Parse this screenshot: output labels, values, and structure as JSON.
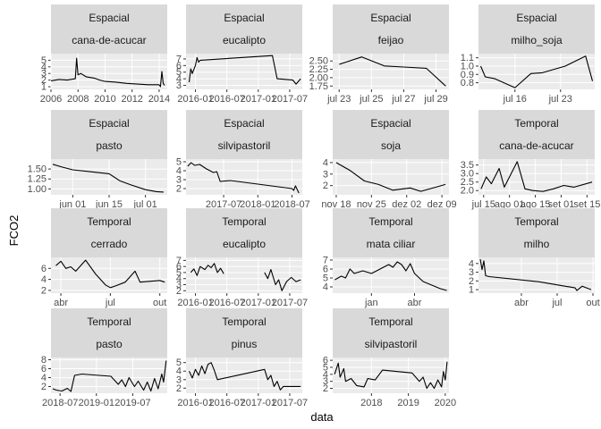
{
  "chart_data": {
    "type": "line",
    "xlabel": "data",
    "ylabel": "FCO2",
    "grid": true,
    "facet_strip_color": "#d9d9d9",
    "panel_color": "#ebebeb",
    "line_color": "#000000",
    "panels": [
      {
        "strip1": "Espacial",
        "strip2": "cana-de-acucar",
        "yticks": [
          "1",
          "2",
          "3",
          "4",
          "5"
        ],
        "ylim": [
          0.6,
          6.0
        ],
        "xticks": [
          "2006",
          "2008",
          "2010",
          "2012",
          "2014"
        ],
        "xlim": [
          0,
          4.3
        ],
        "line": [
          [
            0.0,
            1.9
          ],
          [
            0.3,
            2.1
          ],
          [
            0.6,
            2.0
          ],
          [
            0.9,
            2.2
          ],
          [
            0.95,
            5.3
          ],
          [
            1.0,
            2.8
          ],
          [
            1.1,
            3.0
          ],
          [
            1.3,
            2.5
          ],
          [
            1.6,
            2.3
          ],
          [
            1.8,
            2.0
          ],
          [
            2.0,
            1.8
          ],
          [
            2.4,
            1.7
          ],
          [
            2.8,
            1.5
          ],
          [
            3.2,
            1.4
          ],
          [
            3.6,
            1.3
          ],
          [
            4.0,
            1.3
          ],
          [
            4.05,
            1.0
          ],
          [
            4.1,
            3.3
          ],
          [
            4.15,
            1.5
          ],
          [
            4.2,
            1.2
          ]
        ]
      },
      {
        "strip1": "Espacial",
        "strip2": "eucalipto",
        "yticks": [
          "3",
          "4",
          "5",
          "6",
          "7"
        ],
        "ylim": [
          2.4,
          7.8
        ],
        "xticks": [
          "2016-01",
          "2016-07",
          "2017-01",
          "2017-07"
        ],
        "xlim": [
          -0.3,
          3.4
        ],
        "line": [
          [
            -0.2,
            3.5
          ],
          [
            -0.15,
            5.5
          ],
          [
            -0.1,
            4.8
          ],
          [
            0.0,
            6.0
          ],
          [
            0.05,
            7.2
          ],
          [
            0.1,
            6.5
          ],
          [
            0.15,
            6.8
          ],
          [
            2.45,
            7.5
          ],
          [
            2.6,
            4.0
          ],
          [
            3.1,
            3.8
          ],
          [
            3.2,
            3.2
          ],
          [
            3.35,
            4.0
          ]
        ]
      },
      {
        "strip1": "Espacial",
        "strip2": "feijao",
        "yticks": [
          "1.75",
          "2.00",
          "2.25",
          "2.50"
        ],
        "ylim": [
          1.65,
          2.72
        ],
        "xticks": [
          "jul 23",
          "jul 25",
          "jul 27",
          "jul 29"
        ],
        "xlim": [
          -0.2,
          3.4
        ],
        "line": [
          [
            0.0,
            2.4
          ],
          [
            0.7,
            2.62
          ],
          [
            1.4,
            2.35
          ],
          [
            2.0,
            2.32
          ],
          [
            2.7,
            2.28
          ],
          [
            3.3,
            1.75
          ]
        ]
      },
      {
        "strip1": "Espacial",
        "strip2": "milho_soja",
        "yticks": [
          "0.8",
          "0.9",
          "1.0",
          "1.1"
        ],
        "ylim": [
          0.72,
          1.15
        ],
        "xticks": [
          "jul 16",
          "jul 23"
        ],
        "xlim": [
          -0.8,
          1.75
        ],
        "line": [
          [
            -0.75,
            1.0
          ],
          [
            -0.65,
            0.87
          ],
          [
            -0.45,
            0.85
          ],
          [
            0.0,
            0.74
          ],
          [
            0.35,
            0.91
          ],
          [
            0.6,
            0.92
          ],
          [
            1.1,
            1.0
          ],
          [
            1.55,
            1.12
          ],
          [
            1.7,
            0.82
          ]
        ]
      },
      {
        "strip1": "Espacial",
        "strip2": "pasto",
        "yticks": [
          "1.00",
          "1.25",
          "1.50"
        ],
        "ylim": [
          0.85,
          1.75
        ],
        "xticks": [
          "jun 01",
          "jun 15",
          "jul 01"
        ],
        "xlim": [
          -0.6,
          2.6
        ],
        "line": [
          [
            -0.55,
            1.62
          ],
          [
            -0.3,
            1.55
          ],
          [
            0.0,
            1.48
          ],
          [
            0.5,
            1.43
          ],
          [
            1.0,
            1.38
          ],
          [
            1.3,
            1.2
          ],
          [
            1.6,
            1.1
          ],
          [
            2.0,
            0.98
          ],
          [
            2.3,
            0.93
          ],
          [
            2.5,
            0.92
          ]
        ]
      },
      {
        "strip1": "Espacial",
        "strip2": "silvipastoril",
        "yticks": [
          "2",
          "3",
          "4",
          "5"
        ],
        "ylim": [
          1.3,
          5.3
        ],
        "xticks": [
          "2017-07",
          "2018-01",
          "2018-07"
        ],
        "xlim": [
          -1.1,
          2.3
        ],
        "line": [
          [
            -1.05,
            4.5
          ],
          [
            -0.95,
            4.9
          ],
          [
            -0.85,
            4.6
          ],
          [
            -0.7,
            4.7
          ],
          [
            -0.5,
            4.2
          ],
          [
            -0.3,
            3.8
          ],
          [
            -0.2,
            3.9
          ],
          [
            -0.1,
            2.8
          ],
          [
            0.2,
            2.9
          ],
          [
            1.0,
            2.5
          ],
          [
            1.6,
            2.2
          ],
          [
            2.0,
            2.0
          ],
          [
            2.05,
            1.8
          ],
          [
            2.1,
            2.3
          ],
          [
            2.2,
            1.5
          ]
        ]
      },
      {
        "strip1": "Espacial",
        "strip2": "soja",
        "yticks": [
          "2",
          "3",
          "4"
        ],
        "ylim": [
          1.2,
          4.3
        ],
        "xticks": [
          "nov 18",
          "nov 25",
          "dez 02",
          "dez 09"
        ],
        "xlim": [
          -0.1,
          3.2
        ],
        "line": [
          [
            0.0,
            4.0
          ],
          [
            0.4,
            3.3
          ],
          [
            0.8,
            2.4
          ],
          [
            1.2,
            2.1
          ],
          [
            1.6,
            1.6
          ],
          [
            2.1,
            1.8
          ],
          [
            2.4,
            1.5
          ],
          [
            3.1,
            2.1
          ]
        ]
      },
      {
        "strip1": "Temporal",
        "strip2": "cana-de-acucar",
        "yticks": [
          "2.0",
          "2.5",
          "3.0",
          "3.5"
        ],
        "ylim": [
          1.75,
          3.85
        ],
        "xticks": [
          "jul 15",
          "ago 01",
          "ago 15",
          "set 01",
          "set 15"
        ],
        "xlim": [
          -0.2,
          4.3
        ],
        "line": [
          [
            -0.1,
            2.1
          ],
          [
            0.1,
            2.8
          ],
          [
            0.3,
            2.4
          ],
          [
            0.6,
            3.3
          ],
          [
            0.8,
            2.2
          ],
          [
            1.3,
            3.7
          ],
          [
            1.6,
            2.1
          ],
          [
            1.9,
            2.0
          ],
          [
            2.3,
            1.95
          ],
          [
            2.7,
            2.1
          ],
          [
            3.1,
            2.3
          ],
          [
            3.5,
            2.2
          ],
          [
            4.2,
            2.5
          ]
        ]
      },
      {
        "strip1": "Temporal",
        "strip2": "cerrado",
        "yticks": [
          "2",
          "4",
          "6"
        ],
        "ylim": [
          1.5,
          8.0
        ],
        "xticks": [
          "abr",
          "jul",
          "out"
        ],
        "xlim": [
          -0.2,
          2.15
        ],
        "line": [
          [
            -0.1,
            6.5
          ],
          [
            0.0,
            7.3
          ],
          [
            0.1,
            6.0
          ],
          [
            0.2,
            6.3
          ],
          [
            0.3,
            5.5
          ],
          [
            0.5,
            7.5
          ],
          [
            0.7,
            5.0
          ],
          [
            0.9,
            3.0
          ],
          [
            1.0,
            2.5
          ],
          [
            1.1,
            2.8
          ],
          [
            1.3,
            3.5
          ],
          [
            1.5,
            5.5
          ],
          [
            1.6,
            3.5
          ],
          [
            2.0,
            3.8
          ],
          [
            2.1,
            3.5
          ]
        ]
      },
      {
        "strip1": "Temporal",
        "strip2": "eucalipto",
        "yticks": [
          "2",
          "3",
          "4",
          "5",
          "6",
          "7"
        ],
        "ylim": [
          1.6,
          7.5
        ],
        "xticks": [
          "2016-01",
          "2016-07",
          "2017-01",
          "2017-07"
        ],
        "xlim": [
          -0.3,
          3.4
        ],
        "line": [
          [
            -0.15,
            5.0
          ],
          [
            -0.05,
            5.6
          ],
          [
            0.05,
            4.5
          ],
          [
            0.15,
            6.0
          ],
          [
            0.3,
            5.5
          ],
          [
            0.4,
            6.2
          ],
          [
            0.5,
            5.8
          ],
          [
            0.6,
            6.5
          ],
          [
            0.7,
            5.0
          ],
          [
            0.8,
            5.7
          ],
          [
            0.9,
            4.8
          ]
        ],
        "line2": [
          [
            2.2,
            5.0
          ],
          [
            2.3,
            4.0
          ],
          [
            2.4,
            5.5
          ],
          [
            2.55,
            3.0
          ],
          [
            2.65,
            3.8
          ],
          [
            2.75,
            2.0
          ],
          [
            2.9,
            3.5
          ],
          [
            3.05,
            4.2
          ],
          [
            3.2,
            3.5
          ],
          [
            3.35,
            3.8
          ]
        ]
      },
      {
        "strip1": "Temporal",
        "strip2": "mata ciliar",
        "yticks": [
          "4",
          "5",
          "6",
          "7"
        ],
        "ylim": [
          3.3,
          7.3
        ],
        "xticks": [
          "jan",
          "abr"
        ],
        "xlim": [
          -0.9,
          1.8
        ],
        "line": [
          [
            -0.85,
            4.8
          ],
          [
            -0.7,
            5.2
          ],
          [
            -0.6,
            5.0
          ],
          [
            -0.5,
            6.0
          ],
          [
            -0.4,
            5.5
          ],
          [
            -0.2,
            5.8
          ],
          [
            0.0,
            5.5
          ],
          [
            0.2,
            6.0
          ],
          [
            0.4,
            6.5
          ],
          [
            0.5,
            6.2
          ],
          [
            0.6,
            6.8
          ],
          [
            0.7,
            6.5
          ],
          [
            0.8,
            5.8
          ],
          [
            0.9,
            6.6
          ],
          [
            1.0,
            5.5
          ],
          [
            1.2,
            4.6
          ],
          [
            1.4,
            4.2
          ],
          [
            1.6,
            3.8
          ],
          [
            1.75,
            3.6
          ]
        ]
      },
      {
        "strip1": "Temporal",
        "strip2": "milho",
        "yticks": [
          "1",
          "2",
          "3",
          "4"
        ],
        "ylim": [
          0.6,
          4.7
        ],
        "xticks": [
          "abr",
          "jul",
          "out"
        ],
        "xlim": [
          -1.2,
          2.05
        ],
        "line": [
          [
            -1.15,
            4.5
          ],
          [
            -1.1,
            3.3
          ],
          [
            -1.05,
            4.3
          ],
          [
            -1.0,
            2.6
          ],
          [
            -0.9,
            2.5
          ],
          [
            0.5,
            1.9
          ],
          [
            1.5,
            1.2
          ],
          [
            1.55,
            0.9
          ],
          [
            1.7,
            1.4
          ],
          [
            1.95,
            1.0
          ]
        ]
      },
      {
        "strip1": "Temporal",
        "strip2": "pasto",
        "yticks": [
          "2",
          "4",
          "6",
          "8"
        ],
        "ylim": [
          0.5,
          8.5
        ],
        "xticks": [
          "2018-07",
          "2019-01",
          "2019-07"
        ],
        "xlim": [
          -0.25,
          2.95
        ],
        "line": [
          [
            -0.2,
            1.5
          ],
          [
            -0.1,
            1.2
          ],
          [
            0.05,
            1.0
          ],
          [
            0.2,
            1.6
          ],
          [
            0.3,
            0.9
          ],
          [
            0.4,
            4.5
          ],
          [
            0.6,
            4.8
          ],
          [
            1.4,
            4.3
          ],
          [
            1.6,
            2.5
          ],
          [
            1.7,
            3.5
          ],
          [
            1.8,
            2.0
          ],
          [
            1.9,
            4.0
          ],
          [
            2.05,
            2.0
          ],
          [
            2.15,
            3.2
          ],
          [
            2.3,
            1.2
          ],
          [
            2.4,
            3.0
          ],
          [
            2.5,
            1.0
          ],
          [
            2.6,
            3.8
          ],
          [
            2.7,
            1.5
          ],
          [
            2.8,
            4.8
          ],
          [
            2.85,
            3.0
          ],
          [
            2.92,
            7.8
          ]
        ]
      },
      {
        "strip1": "Temporal",
        "strip2": "pinus",
        "yticks": [
          "2",
          "3",
          "4",
          "5"
        ],
        "ylim": [
          1.4,
          5.6
        ],
        "xticks": [
          "2016-01",
          "2016-07",
          "2017-01",
          "2017-07"
        ],
        "xlim": [
          -0.3,
          3.4
        ],
        "line": [
          [
            -0.2,
            4.0
          ],
          [
            -0.1,
            3.2
          ],
          [
            0.0,
            4.2
          ],
          [
            0.1,
            3.5
          ],
          [
            0.2,
            4.6
          ],
          [
            0.3,
            3.7
          ],
          [
            0.4,
            4.8
          ],
          [
            0.5,
            5.0
          ],
          [
            0.6,
            4.1
          ],
          [
            0.7,
            3.0
          ],
          [
            2.2,
            4.2
          ],
          [
            2.3,
            3.0
          ],
          [
            2.4,
            3.5
          ],
          [
            2.5,
            2.2
          ],
          [
            2.6,
            2.8
          ],
          [
            2.7,
            1.8
          ],
          [
            2.8,
            2.2
          ],
          [
            3.35,
            2.2
          ]
        ]
      },
      {
        "strip1": "Temporal",
        "strip2": "silvipastoril",
        "yticks": [
          "2",
          "3",
          "4",
          "5",
          "6"
        ],
        "ylim": [
          1.3,
          6.4
        ],
        "xticks": [
          "2018",
          "2019",
          "2020"
        ],
        "xlim": [
          -1.05,
          2.1
        ],
        "line": [
          [
            -1.0,
            4.0
          ],
          [
            -0.9,
            5.6
          ],
          [
            -0.85,
            3.6
          ],
          [
            -0.75,
            4.8
          ],
          [
            -0.7,
            3.0
          ],
          [
            -0.55,
            3.4
          ],
          [
            -0.4,
            2.4
          ],
          [
            -0.2,
            2.2
          ],
          [
            -0.1,
            3.4
          ],
          [
            0.1,
            3.2
          ],
          [
            0.3,
            4.6
          ],
          [
            1.1,
            4.2
          ],
          [
            1.3,
            3.0
          ],
          [
            1.4,
            3.6
          ],
          [
            1.5,
            2.0
          ],
          [
            1.6,
            2.8
          ],
          [
            1.7,
            2.0
          ],
          [
            1.8,
            3.2
          ],
          [
            1.9,
            2.2
          ],
          [
            1.95,
            4.4
          ],
          [
            2.0,
            3.2
          ],
          [
            2.05,
            5.8
          ]
        ]
      }
    ]
  }
}
